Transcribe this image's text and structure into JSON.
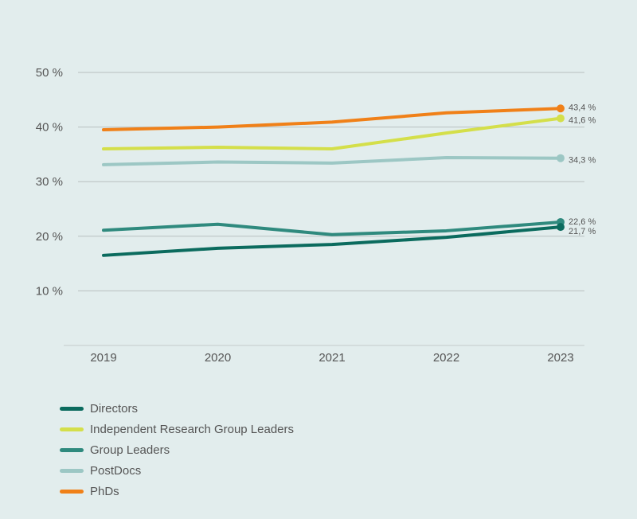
{
  "chart_data": {
    "type": "line",
    "title": "",
    "xlabel": "",
    "ylabel": "",
    "x": [
      "2019",
      "2020",
      "2021",
      "2022",
      "2023"
    ],
    "ylim": [
      0,
      50
    ],
    "yticks": [
      10,
      20,
      30,
      40,
      50
    ],
    "ytick_labels": [
      "10 %",
      "20 %",
      "30 %",
      "40 %",
      "50 %"
    ],
    "grid": true,
    "legend_position": "bottom-left",
    "series": [
      {
        "name": "Directors",
        "color": "#0b6b5e",
        "values": [
          16.5,
          17.8,
          18.5,
          19.8,
          21.7
        ],
        "end_label": "21,7 %"
      },
      {
        "name": "Independent Research Group Leaders",
        "color": "#d4df4a",
        "values": [
          36.0,
          36.3,
          36.0,
          38.9,
          41.6
        ],
        "end_label": "41,6 %"
      },
      {
        "name": "Group Leaders",
        "color": "#2f8a7e",
        "values": [
          21.1,
          22.2,
          20.3,
          21.0,
          22.6
        ],
        "end_label": "22,6 %"
      },
      {
        "name": "PostDocs",
        "color": "#9cc7c4",
        "values": [
          33.1,
          33.6,
          33.4,
          34.4,
          34.3
        ],
        "end_label": "34,3 %"
      },
      {
        "name": "PhDs",
        "color": "#f08018",
        "values": [
          39.5,
          40.0,
          40.9,
          42.6,
          43.4
        ],
        "end_label": "43,4 %"
      }
    ]
  }
}
